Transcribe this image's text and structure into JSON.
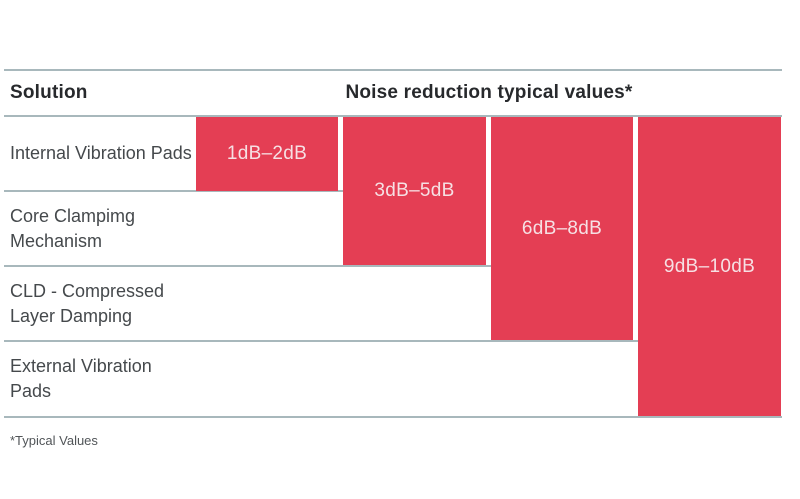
{
  "header": {
    "solution_label": "Solution",
    "values_label": "Noise reduction typical values*"
  },
  "footnote": "*Typical Values",
  "colors": {
    "block_red": "#E43E54",
    "block_text": "#F6E0E4",
    "grid_line": "#A8B8BC",
    "header_text": "#27292C",
    "row_text": "#45494C"
  },
  "chart_data": {
    "type": "bar",
    "title": "Noise reduction typical values*",
    "categories": [
      "Internal Vibration Pads",
      "Core Clampimg Mechanism",
      "CLD - Compressed Layer Damping",
      "External Vibration Pads"
    ],
    "range_labels": [
      "1dB–2dB",
      "3dB–5dB",
      "6dB–8dB",
      "9dB–10dB"
    ],
    "ranges_db": [
      [
        1,
        2
      ],
      [
        3,
        5
      ],
      [
        6,
        8
      ],
      [
        9,
        10
      ]
    ],
    "values": [
      2,
      5,
      8,
      10
    ],
    "layout": "horizontal cumulative blocks; block N spans category rows 1..N",
    "legend": "none",
    "grid": "row divider lines only",
    "footnote": "*Typical Values"
  }
}
